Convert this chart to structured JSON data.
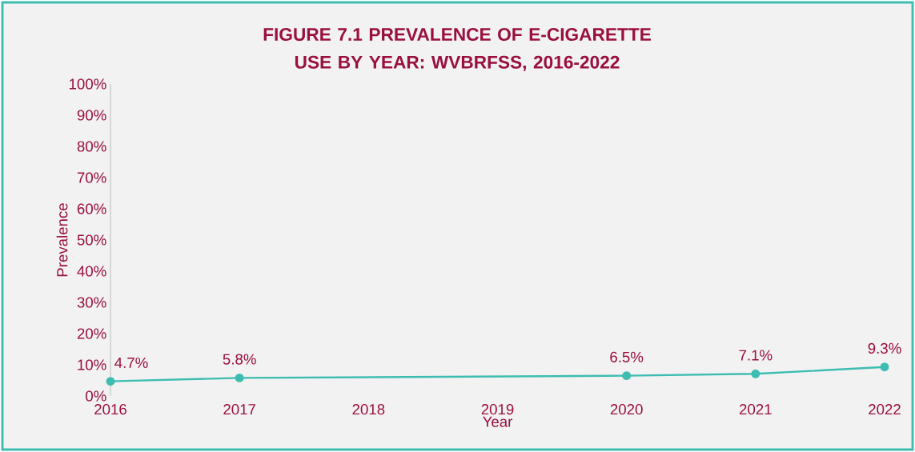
{
  "chart_data": {
    "type": "line",
    "title": "FIGURE 7.1 PREVALENCE OF E-CIGARETTE USE BY YEAR: WVBRFSS, 2016-2022",
    "xlabel": "Year",
    "ylabel": "Prevalence",
    "x": [
      2016,
      2017,
      2020,
      2021,
      2022
    ],
    "series": [
      {
        "color": "#3dbdb1",
        "values": [
          4.7,
          5.8,
          6.5,
          7.1,
          9.3
        ],
        "value_labels": [
          "4.7%",
          "5.8%",
          "6.5%",
          "7.1%",
          "9.3%"
        ]
      }
    ],
    "xlim": [
      2016,
      2022
    ],
    "xticks": [
      2016,
      2017,
      2018,
      2019,
      2020,
      2021,
      2022
    ],
    "ylim": [
      0,
      100
    ],
    "yticks": [
      {
        "value": 0,
        "label": "0%"
      },
      {
        "value": 10,
        "label": "10%"
      },
      {
        "value": 20,
        "label": "20%"
      },
      {
        "value": 30,
        "label": "30%"
      },
      {
        "value": 40,
        "label": "40%"
      },
      {
        "value": 50,
        "label": "50%"
      },
      {
        "value": 60,
        "label": "60%"
      },
      {
        "value": 70,
        "label": "70%"
      },
      {
        "value": 80,
        "label": "80%"
      },
      {
        "value": 90,
        "label": "90%"
      },
      {
        "value": 100,
        "label": "100%"
      }
    ],
    "marker": "circle",
    "line_style": "solid"
  }
}
